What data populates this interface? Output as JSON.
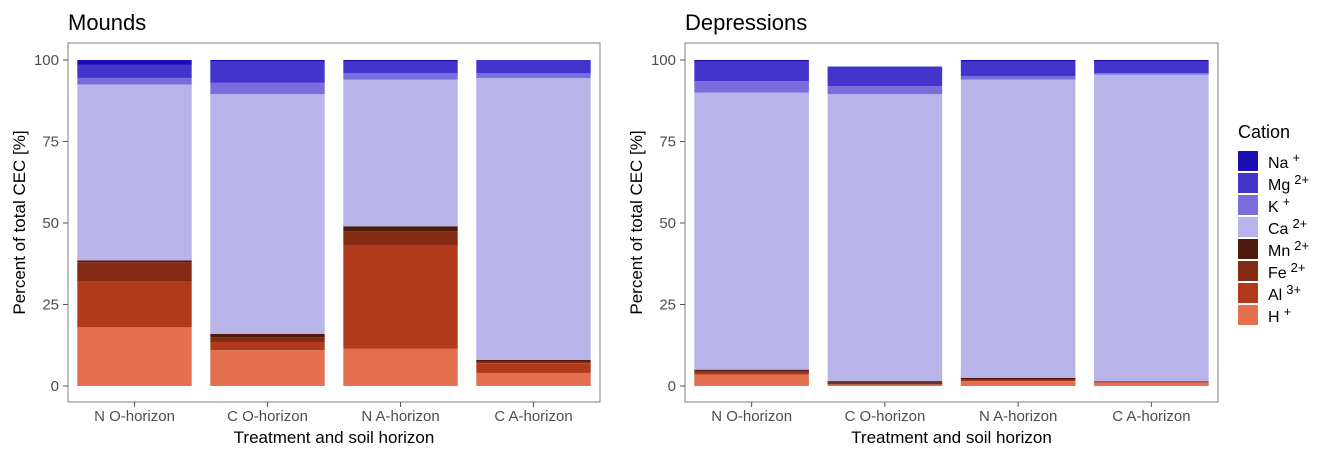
{
  "chart_data": [
    {
      "type": "bar",
      "stacked": true,
      "title": "Mounds",
      "xlabel": "Treatment and soil horizon",
      "ylabel": "Percent of total CEC [%]",
      "ylim": [
        0,
        100
      ],
      "yticks": [
        0,
        25,
        50,
        75,
        100
      ],
      "categories": [
        "N O-horizon",
        "C O-horizon",
        "N A-horizon",
        "C A-horizon"
      ],
      "series": [
        {
          "name": "H",
          "values": [
            18,
            11,
            11.5,
            4
          ]
        },
        {
          "name": "Al",
          "values": [
            14,
            2.5,
            31.5,
            3
          ]
        },
        {
          "name": "Fe",
          "values": [
            6,
            1.5,
            4.5,
            0.5
          ]
        },
        {
          "name": "Mn",
          "values": [
            0.5,
            1,
            1.5,
            0.5
          ]
        },
        {
          "name": "Ca",
          "values": [
            54,
            73.5,
            45,
            86.5
          ]
        },
        {
          "name": "K",
          "values": [
            2,
            3.5,
            2,
            1.5
          ]
        },
        {
          "name": "Mg",
          "values": [
            4,
            6.5,
            3.5,
            4
          ]
        },
        {
          "name": "Na",
          "values": [
            1.5,
            0.5,
            0.5,
            0
          ]
        }
      ],
      "grid": false,
      "legend": "right"
    },
    {
      "type": "bar",
      "stacked": true,
      "title": "Depressions",
      "xlabel": "Treatment and soil horizon",
      "ylabel": "Percent of total CEC [%]",
      "ylim": [
        0,
        100
      ],
      "yticks": [
        0,
        25,
        50,
        75,
        100
      ],
      "categories": [
        "N O-horizon",
        "C O-horizon",
        "N A-horizon",
        "C A-horizon"
      ],
      "series": [
        {
          "name": "H",
          "values": [
            3.5,
            0.5,
            1.5,
            1
          ]
        },
        {
          "name": "Al",
          "values": [
            0.5,
            0,
            0.5,
            0.5
          ]
        },
        {
          "name": "Fe",
          "values": [
            0.5,
            0.5,
            0,
            0
          ]
        },
        {
          "name": "Mn",
          "values": [
            0.5,
            0.5,
            0.5,
            0
          ]
        },
        {
          "name": "Ca",
          "values": [
            85,
            88,
            91.5,
            94
          ]
        },
        {
          "name": "K",
          "values": [
            3.5,
            2.5,
            1,
            0.5
          ]
        },
        {
          "name": "Mg",
          "values": [
            6,
            6,
            4.5,
            3.5
          ]
        },
        {
          "name": "Na",
          "values": [
            0.5,
            0,
            0.5,
            0.5
          ]
        }
      ],
      "grid": false,
      "legend": "right"
    }
  ],
  "legend": {
    "title": "Cation",
    "items": [
      {
        "key": "Na",
        "base": "Na",
        "sup": "+",
        "color": "#1a0fb5"
      },
      {
        "key": "Mg",
        "base": "Mg",
        "sup": "2+",
        "color": "#4434cc"
      },
      {
        "key": "K",
        "base": "K",
        "sup": "+",
        "color": "#7b6cdb"
      },
      {
        "key": "Ca",
        "base": "Ca",
        "sup": "2+",
        "color": "#b8b3e8"
      },
      {
        "key": "Mn",
        "base": "Mn",
        "sup": "2+",
        "color": "#4e1a0c"
      },
      {
        "key": "Fe",
        "base": "Fe",
        "sup": "2+",
        "color": "#832a13"
      },
      {
        "key": "Al",
        "base": "Al",
        "sup": "3+",
        "color": "#b03a1b"
      },
      {
        "key": "H",
        "base": "H",
        "sup": "+",
        "color": "#e36f4e"
      }
    ]
  },
  "colors": {
    "axis": "#555555",
    "panel_border": "#7f7f7f",
    "tick_text": "#4d4d4d"
  }
}
